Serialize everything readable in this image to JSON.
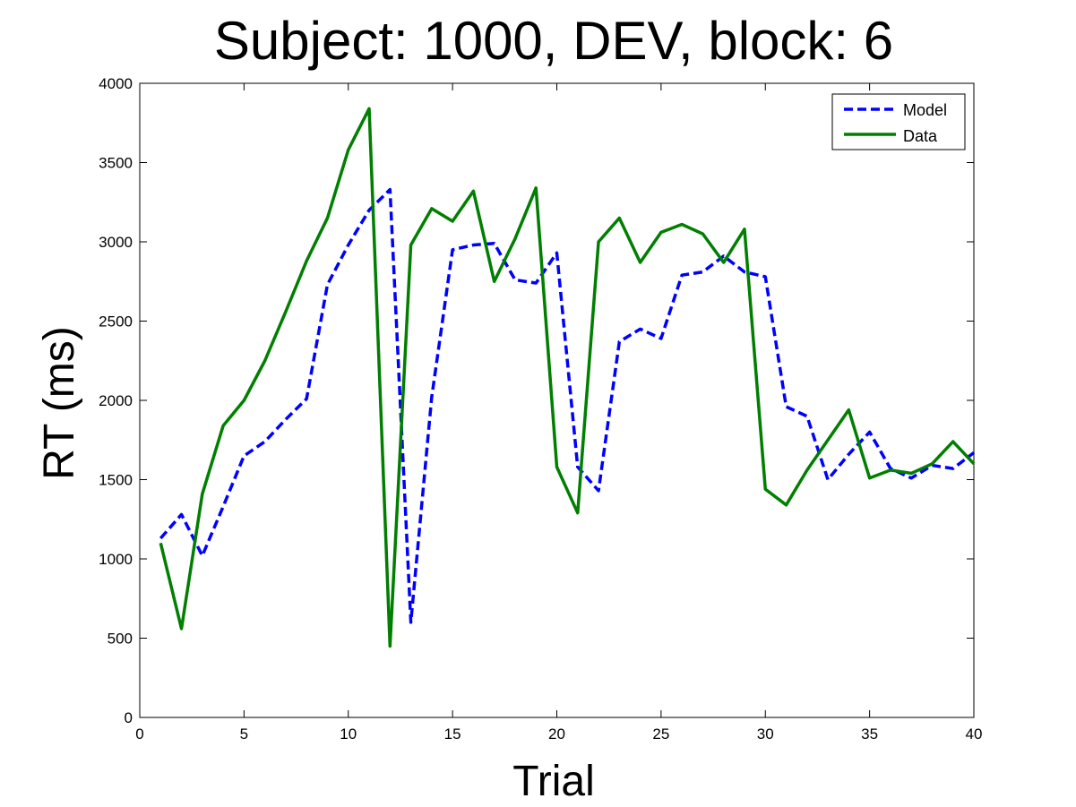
{
  "chart_data": {
    "type": "line",
    "title": "Subject: 1000, DEV, block: 6",
    "xlabel": "Trial",
    "ylabel": "RT (ms)",
    "xlim": [
      0,
      40
    ],
    "ylim": [
      0,
      4000
    ],
    "xticks": [
      0,
      5,
      10,
      15,
      20,
      25,
      30,
      35,
      40
    ],
    "yticks": [
      0,
      500,
      1000,
      1500,
      2000,
      2500,
      3000,
      3500,
      4000
    ],
    "grid": false,
    "legend_position": "top-right",
    "x": [
      1,
      2,
      3,
      4,
      5,
      6,
      7,
      8,
      9,
      10,
      11,
      12,
      13,
      14,
      15,
      16,
      17,
      18,
      19,
      20,
      21,
      22,
      23,
      24,
      25,
      26,
      27,
      28,
      29,
      30,
      31,
      32,
      33,
      34,
      35,
      36,
      37,
      38,
      39,
      40
    ],
    "series": [
      {
        "name": "Model",
        "style": "dashed",
        "color": "#0000ff",
        "values": [
          1130,
          1280,
          1020,
          1330,
          1650,
          1740,
          1880,
          2010,
          2730,
          2980,
          3200,
          3330,
          600,
          2020,
          2950,
          2980,
          2990,
          2760,
          2740,
          2930,
          1580,
          1430,
          2370,
          2450,
          2390,
          2790,
          2810,
          2910,
          2810,
          2780,
          1960,
          1900,
          1500,
          1660,
          1800,
          1570,
          1510,
          1590,
          1570,
          1670
        ]
      },
      {
        "name": "Data",
        "style": "solid",
        "color": "#007f00",
        "values": [
          1100,
          560,
          1410,
          1840,
          2000,
          2250,
          2560,
          2880,
          3150,
          3580,
          3840,
          450,
          2980,
          3210,
          3130,
          3320,
          2750,
          3020,
          3340,
          1580,
          1290,
          3000,
          3150,
          2870,
          3060,
          3110,
          3050,
          2870,
          3080,
          1440,
          1340,
          1560,
          1750,
          1940,
          1510,
          1560,
          1540,
          1600,
          1740,
          1600
        ]
      }
    ]
  }
}
